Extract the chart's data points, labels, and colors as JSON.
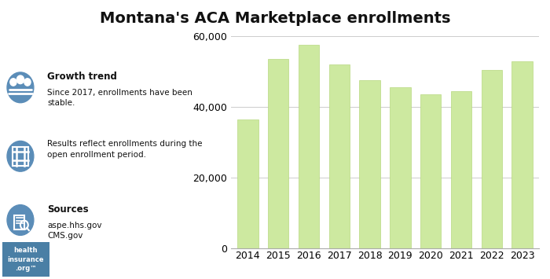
{
  "title": "Montana's ACA Marketplace enrollments",
  "years": [
    2014,
    2015,
    2016,
    2017,
    2018,
    2019,
    2020,
    2021,
    2022,
    2023
  ],
  "values": [
    36500,
    53500,
    57500,
    52000,
    47500,
    45500,
    43500,
    44500,
    50500,
    53000
  ],
  "bar_color": "#cde9a0",
  "bar_edge_color": "#b8d880",
  "ylim": [
    0,
    60000
  ],
  "yticks": [
    0,
    20000,
    40000,
    60000
  ],
  "grid_color": "#cccccc",
  "background_color": "#ffffff",
  "title_fontsize": 14,
  "tick_fontsize": 9,
  "icon_color": "#5b8db8",
  "footer_bg": "#4a7fa5",
  "sidebar": {
    "growth_title": "Growth trend",
    "growth_text": "Since 2017, enrollments have been\nstable.",
    "results_text": "Results reflect enrollments during the\nopen enrollment period.",
    "sources_title": "Sources",
    "sources_text": "aspe.hhs.gov\nCMS.gov"
  }
}
